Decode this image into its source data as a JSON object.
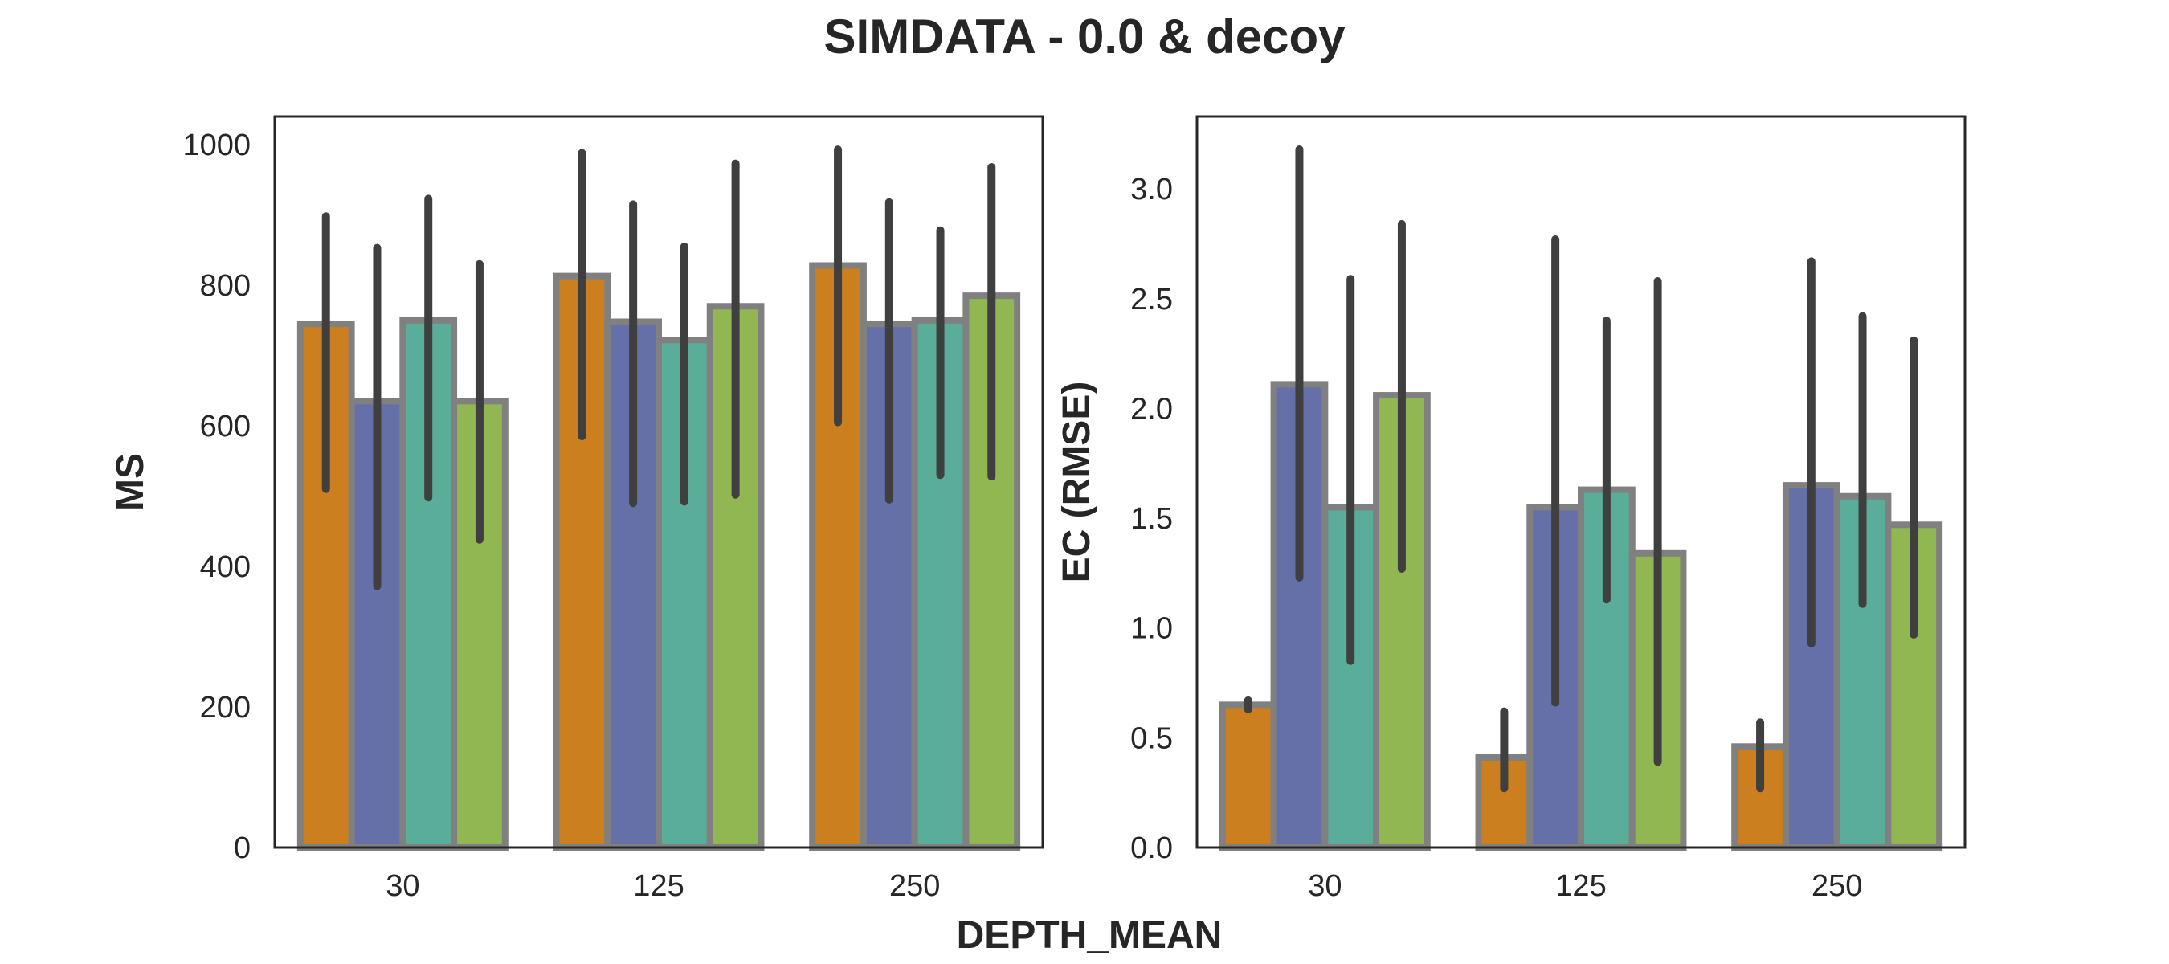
{
  "figure": {
    "title": "SIMDATA - 0.0 & decoy",
    "xlabel": "DEPTH_MEAN"
  },
  "chart_data": [
    {
      "type": "bar",
      "categories": [
        "30",
        "125",
        "250"
      ],
      "xlabel": "DEPTH_MEAN",
      "ylabel": "MS",
      "ylim": [
        0,
        1040
      ],
      "yticks": [
        0,
        200,
        400,
        600,
        800,
        1000
      ],
      "grid": false,
      "legend": "none",
      "colors": [
        "#cc7f1e",
        "#6570a8",
        "#5aad99",
        "#91b752"
      ],
      "series": [
        {
          "values": [
            745,
            813,
            828
          ],
          "err_low": [
            510,
            585,
            605
          ],
          "err_high": [
            898,
            988,
            993
          ]
        },
        {
          "values": [
            635,
            748,
            745
          ],
          "err_low": [
            372,
            490,
            495
          ],
          "err_high": [
            853,
            915,
            918
          ]
        },
        {
          "values": [
            750,
            722,
            750
          ],
          "err_low": [
            498,
            492,
            530
          ],
          "err_high": [
            923,
            855,
            878
          ]
        },
        {
          "values": [
            635,
            770,
            785
          ],
          "err_low": [
            438,
            502,
            528
          ],
          "err_high": [
            830,
            973,
            968
          ]
        }
      ]
    },
    {
      "type": "bar",
      "categories": [
        "30",
        "125",
        "250"
      ],
      "xlabel": "DEPTH_MEAN",
      "ylabel": "EC (RMSE)",
      "ylim": [
        0,
        3.33
      ],
      "yticks": [
        0.0,
        0.5,
        1.0,
        1.5,
        2.0,
        2.5,
        3.0
      ],
      "ytick_labels": [
        "0.0",
        "0.5",
        "1.0",
        "1.5",
        "2.0",
        "2.5",
        "3.0"
      ],
      "grid": false,
      "legend": "none",
      "colors": [
        "#cc7f1e",
        "#6570a8",
        "#5aad99",
        "#91b752"
      ],
      "series": [
        {
          "values": [
            0.65,
            0.41,
            0.46
          ],
          "err_low": [
            0.63,
            0.27,
            0.27
          ],
          "err_high": [
            0.67,
            0.62,
            0.57
          ]
        },
        {
          "values": [
            2.11,
            1.55,
            1.65
          ],
          "err_low": [
            1.23,
            0.66,
            0.93
          ],
          "err_high": [
            3.18,
            2.77,
            2.67
          ]
        },
        {
          "values": [
            1.55,
            1.63,
            1.6
          ],
          "err_low": [
            0.85,
            1.13,
            1.11
          ],
          "err_high": [
            2.59,
            2.4,
            2.42
          ]
        },
        {
          "values": [
            2.06,
            1.34,
            1.47
          ],
          "err_low": [
            1.27,
            0.39,
            0.97
          ],
          "err_high": [
            2.84,
            2.58,
            2.31
          ]
        }
      ]
    }
  ]
}
